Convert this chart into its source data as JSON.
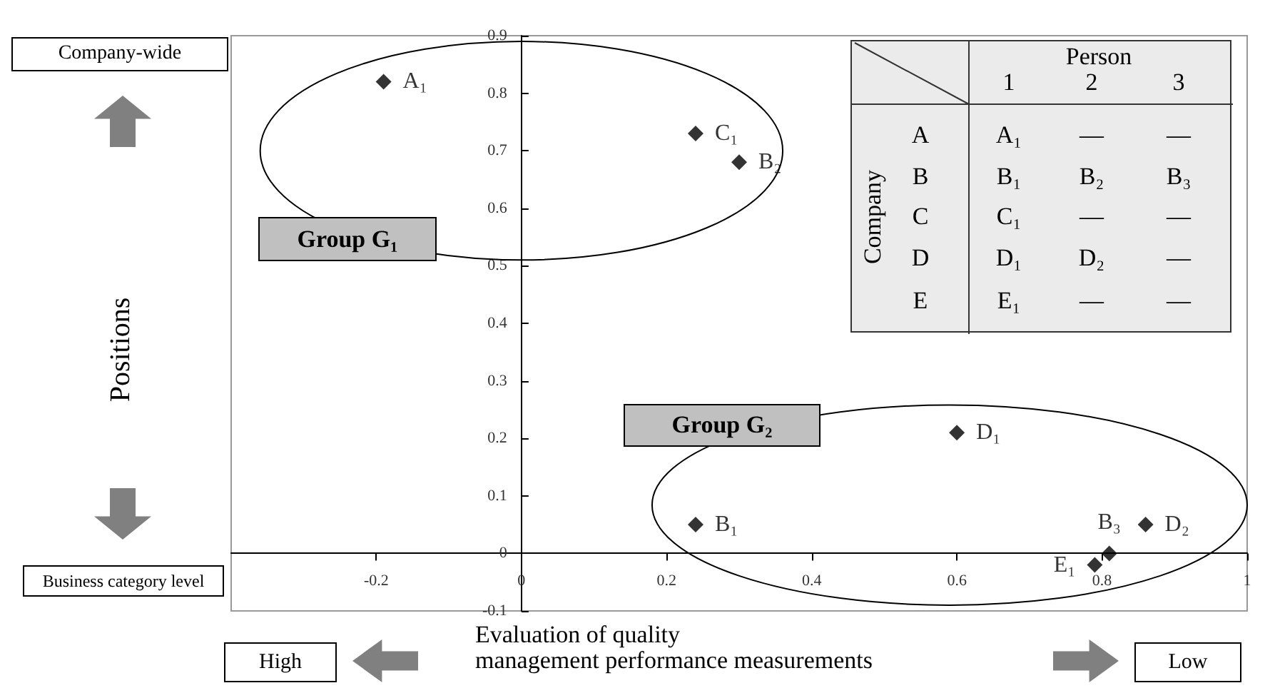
{
  "chart_data": {
    "type": "scatter",
    "xlabel": "Evaluation of quality\nmanagement performance measurements",
    "ylabel": "Positions",
    "x": [
      -0.19,
      0.24,
      0.3,
      0.6,
      0.24,
      0.86,
      0.81,
      0.79
    ],
    "values": [
      0.82,
      0.73,
      0.68,
      0.21,
      0.05,
      0.05,
      0,
      -0.02
    ],
    "value_labels": [
      "A₁",
      "C₁",
      "B₂",
      "D₁",
      "B₁",
      "D₂",
      "B₃",
      "E₁"
    ],
    "color": "#000000",
    "marker": "diamond",
    "grid": false,
    "xlim": [
      -0.4,
      1
    ],
    "xticks": [
      -0.2,
      0,
      0.2,
      0.4,
      0.6,
      0.8,
      1
    ],
    "ylim": [
      -0.1,
      0.9
    ],
    "yticks": [
      -0.1,
      0,
      0.1,
      0.2,
      0.3,
      0.4,
      0.5,
      0.6,
      0.7,
      0.8,
      0.9
    ],
    "annotations": [
      "Company-wide",
      "Business category level",
      "High",
      "Low",
      "Group G₁",
      "Group G₂",
      "Person",
      "Company",
      "1",
      "2",
      "3",
      "A",
      "A₁",
      "—",
      "—",
      "B",
      "B₁",
      "B₂",
      "B₃",
      "C",
      "C₁",
      "—",
      "—",
      "D",
      "D₁",
      "D₂",
      "—",
      "E",
      "E₁",
      "—",
      "—"
    ]
  }
}
